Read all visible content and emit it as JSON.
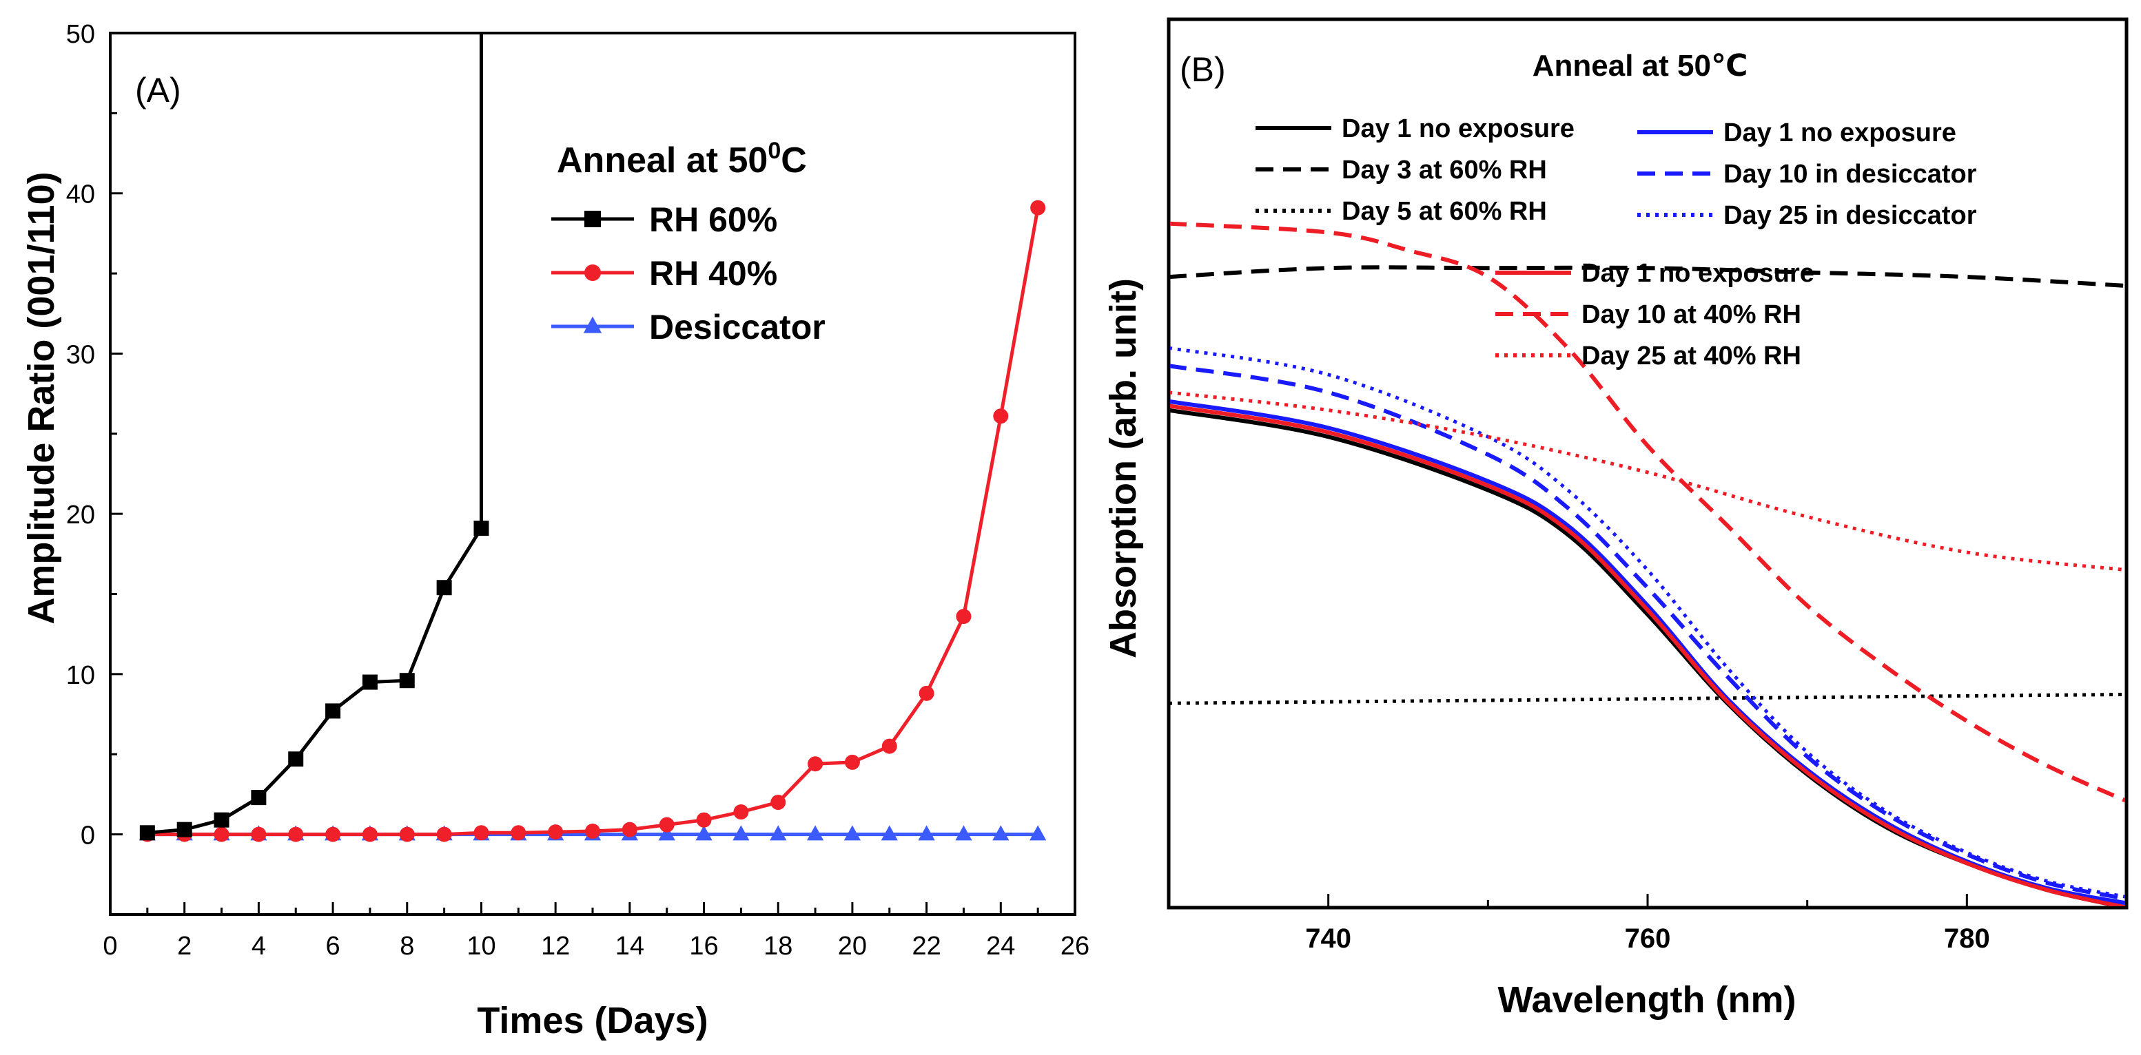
{
  "chart_data": [
    {
      "panel": "(A)",
      "type": "line",
      "title": "",
      "xlabel": "Times (Days)",
      "ylabel": "Amplitude Ratio (001/110)",
      "xlim": [
        0,
        26
      ],
      "ylim": [
        -5,
        50
      ],
      "xticks": [
        "0",
        "2",
        "4",
        "6",
        "8",
        "10",
        "12",
        "14",
        "16",
        "18",
        "20",
        "22",
        "24",
        "26"
      ],
      "yticks": [
        "0",
        "10",
        "20",
        "30",
        "40",
        "50"
      ],
      "legend_title": "Anneal at 50",
      "legend_title_sup": "0",
      "legend_title_unit": "C",
      "series": [
        {
          "name": "RH 60%",
          "color": "#000000",
          "marker": "square",
          "x": [
            1,
            2,
            3,
            4,
            5,
            6,
            7,
            8,
            9,
            10
          ],
          "y": [
            0.1,
            0.3,
            0.9,
            2.3,
            4.7,
            7.7,
            9.5,
            9.6,
            15.4,
            19.1
          ],
          "jump_to": [
            10,
            50
          ]
        },
        {
          "name": "RH 40%",
          "color": "#f0202a",
          "marker": "circle",
          "x": [
            1,
            2,
            3,
            4,
            5,
            6,
            7,
            8,
            9,
            10,
            11,
            12,
            13,
            14,
            15,
            16,
            17,
            18,
            19,
            20,
            21,
            22,
            23,
            24,
            25
          ],
          "y": [
            0,
            0,
            0,
            0,
            0,
            0,
            0,
            0,
            0,
            0.1,
            0.1,
            0.15,
            0.2,
            0.3,
            0.6,
            0.9,
            1.4,
            2.0,
            4.4,
            4.5,
            5.5,
            8.8,
            13.6,
            26.1,
            39.1
          ]
        },
        {
          "name": "Desiccator",
          "color": "#3b5bff",
          "marker": "triangle",
          "x": [
            1,
            2,
            3,
            4,
            5,
            6,
            7,
            8,
            9,
            10,
            11,
            12,
            13,
            14,
            15,
            16,
            17,
            18,
            19,
            20,
            21,
            22,
            23,
            24,
            25
          ],
          "y": [
            0,
            0,
            0,
            0,
            0,
            0,
            0,
            0,
            0,
            0,
            0,
            0,
            0,
            0,
            0,
            0,
            0,
            0,
            0,
            0,
            0,
            0,
            0,
            0,
            0
          ]
        }
      ]
    },
    {
      "panel": "(B)",
      "type": "line",
      "title": "Anneal at 50℃",
      "xlabel": "Wavelength (nm)",
      "ylabel": "Absorption (arb. unit)",
      "xlim": [
        730,
        790
      ],
      "ylim": [
        0,
        1
      ],
      "xticks": [
        "740",
        "760",
        "780"
      ],
      "series": [
        {
          "name": "Day 1 no exposure",
          "group": "black",
          "color": "#000000",
          "dash": "solid",
          "x": [
            730,
            740,
            750,
            755,
            760,
            765,
            770,
            775,
            780,
            785,
            790
          ],
          "y": [
            0.56,
            0.53,
            0.47,
            0.42,
            0.33,
            0.23,
            0.15,
            0.09,
            0.05,
            0.02,
            0.0
          ]
        },
        {
          "name": "Day 3 at 60% RH",
          "group": "black",
          "color": "#000000",
          "dash": "dashed",
          "x": [
            730,
            740,
            750,
            760,
            770,
            780,
            790
          ],
          "y": [
            0.71,
            0.72,
            0.72,
            0.72,
            0.715,
            0.71,
            0.7
          ]
        },
        {
          "name": "Day 5 at 60% RH",
          "group": "black",
          "color": "#000000",
          "dash": "dotted",
          "x": [
            730,
            790
          ],
          "y": [
            0.23,
            0.24
          ]
        },
        {
          "name": "Day 1 no exposure",
          "group": "blue",
          "color": "#1a1aff",
          "dash": "solid",
          "x": [
            730,
            740,
            750,
            755,
            760,
            765,
            770,
            775,
            780,
            785,
            790
          ],
          "y": [
            0.57,
            0.54,
            0.48,
            0.43,
            0.34,
            0.235,
            0.155,
            0.095,
            0.052,
            0.022,
            0.005
          ]
        },
        {
          "name": "Day 10 in desiccator",
          "group": "blue",
          "color": "#1a1aff",
          "dash": "dashed",
          "x": [
            730,
            740,
            750,
            755,
            760,
            765,
            770,
            775,
            780,
            785,
            790
          ],
          "y": [
            0.61,
            0.58,
            0.51,
            0.45,
            0.36,
            0.26,
            0.17,
            0.105,
            0.06,
            0.028,
            0.01
          ]
        },
        {
          "name": "Day 25 in desiccator",
          "group": "blue",
          "color": "#1a1aff",
          "dash": "dotted",
          "x": [
            730,
            740,
            750,
            755,
            760,
            765,
            770,
            775,
            780,
            785,
            790
          ],
          "y": [
            0.63,
            0.6,
            0.53,
            0.47,
            0.38,
            0.27,
            0.175,
            0.108,
            0.062,
            0.03,
            0.012
          ]
        },
        {
          "name": "Day 1 no exposure",
          "group": "red",
          "color": "#ee1c24",
          "dash": "solid",
          "x": [
            730,
            740,
            750,
            755,
            760,
            765,
            770,
            775,
            780,
            785,
            790
          ],
          "y": [
            0.565,
            0.535,
            0.475,
            0.425,
            0.335,
            0.232,
            0.152,
            0.092,
            0.05,
            0.02,
            0.0
          ]
        },
        {
          "name": "Day 10 at 40% RH",
          "group": "red",
          "color": "#ee1c24",
          "dash": "dashed",
          "x": [
            730,
            740,
            745,
            750,
            755,
            760,
            765,
            770,
            775,
            780,
            785,
            790
          ],
          "y": [
            0.77,
            0.76,
            0.74,
            0.71,
            0.63,
            0.52,
            0.43,
            0.34,
            0.27,
            0.21,
            0.16,
            0.12
          ]
        },
        {
          "name": "Day 25 at 40% RH",
          "group": "red",
          "color": "#ee1c24",
          "dash": "dotted",
          "x": [
            730,
            740,
            750,
            760,
            770,
            780,
            790
          ],
          "y": [
            0.58,
            0.56,
            0.53,
            0.49,
            0.44,
            0.4,
            0.38
          ]
        }
      ]
    }
  ]
}
